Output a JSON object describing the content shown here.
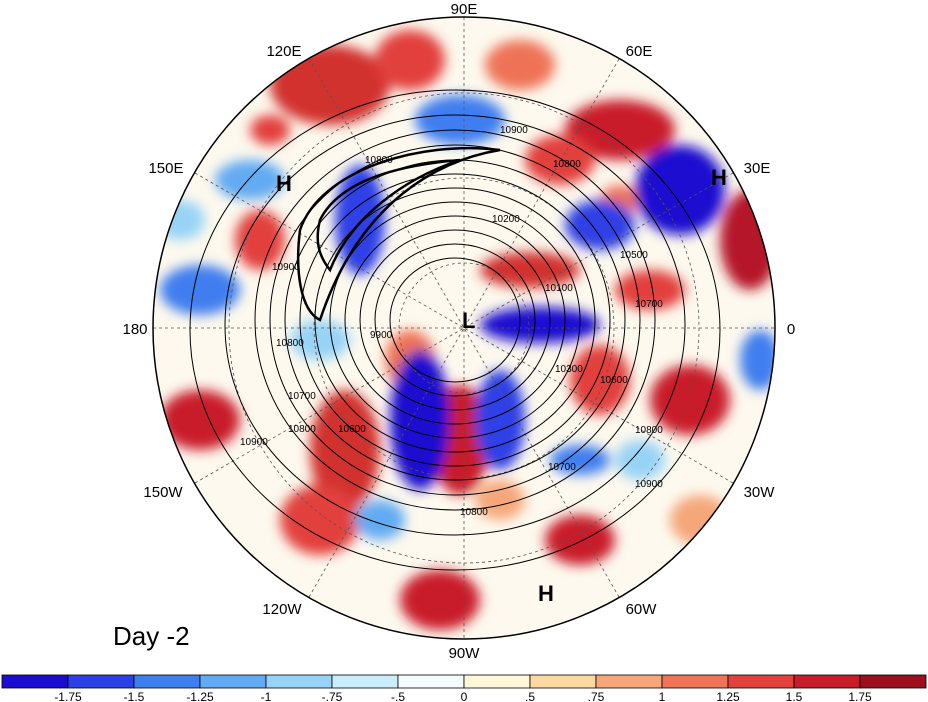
{
  "panel_label": "Day -2",
  "longitude_labels": {
    "top": "90E",
    "upper_left": "120E",
    "upper_right": "60E",
    "left_upper": "150E",
    "right_upper": "30E",
    "left": "180",
    "right": "0",
    "left_lower": "150W",
    "right_lower": "30W",
    "lower_left": "120W",
    "lower_right": "60W",
    "bottom": "90W"
  },
  "pressure_centers": [
    {
      "id": "h-150e",
      "text": "H"
    },
    {
      "id": "h-30e",
      "text": "H"
    },
    {
      "id": "l-pole",
      "text": "L"
    },
    {
      "id": "h-60w",
      "text": "H"
    }
  ],
  "contour_labels": [
    "10900",
    "10800",
    "10200",
    "10900",
    "10800",
    "9900",
    "10800",
    "10700",
    "10600",
    "10800",
    "10900",
    "10800",
    "10700",
    "10600",
    "10800",
    "10900",
    "10500",
    "10300",
    "10100",
    "10700"
  ],
  "colorbar": {
    "colors": [
      "#1c0bd0",
      "#2d3fe6",
      "#3f7eef",
      "#62aaf2",
      "#97d3f6",
      "#c9edfa",
      "#f3fbfd",
      "#fdf6d8",
      "#fbd9a0",
      "#f5a77a",
      "#ee7357",
      "#e2413c",
      "#c91c2a",
      "#9c0f1d"
    ],
    "tick_labels": [
      "-1.75",
      "-1.5",
      "-1.25",
      "-1",
      "-.75",
      "-.5",
      "0",
      ".5",
      ".75",
      "1",
      "1.25",
      "1.5",
      "1.75"
    ]
  }
}
